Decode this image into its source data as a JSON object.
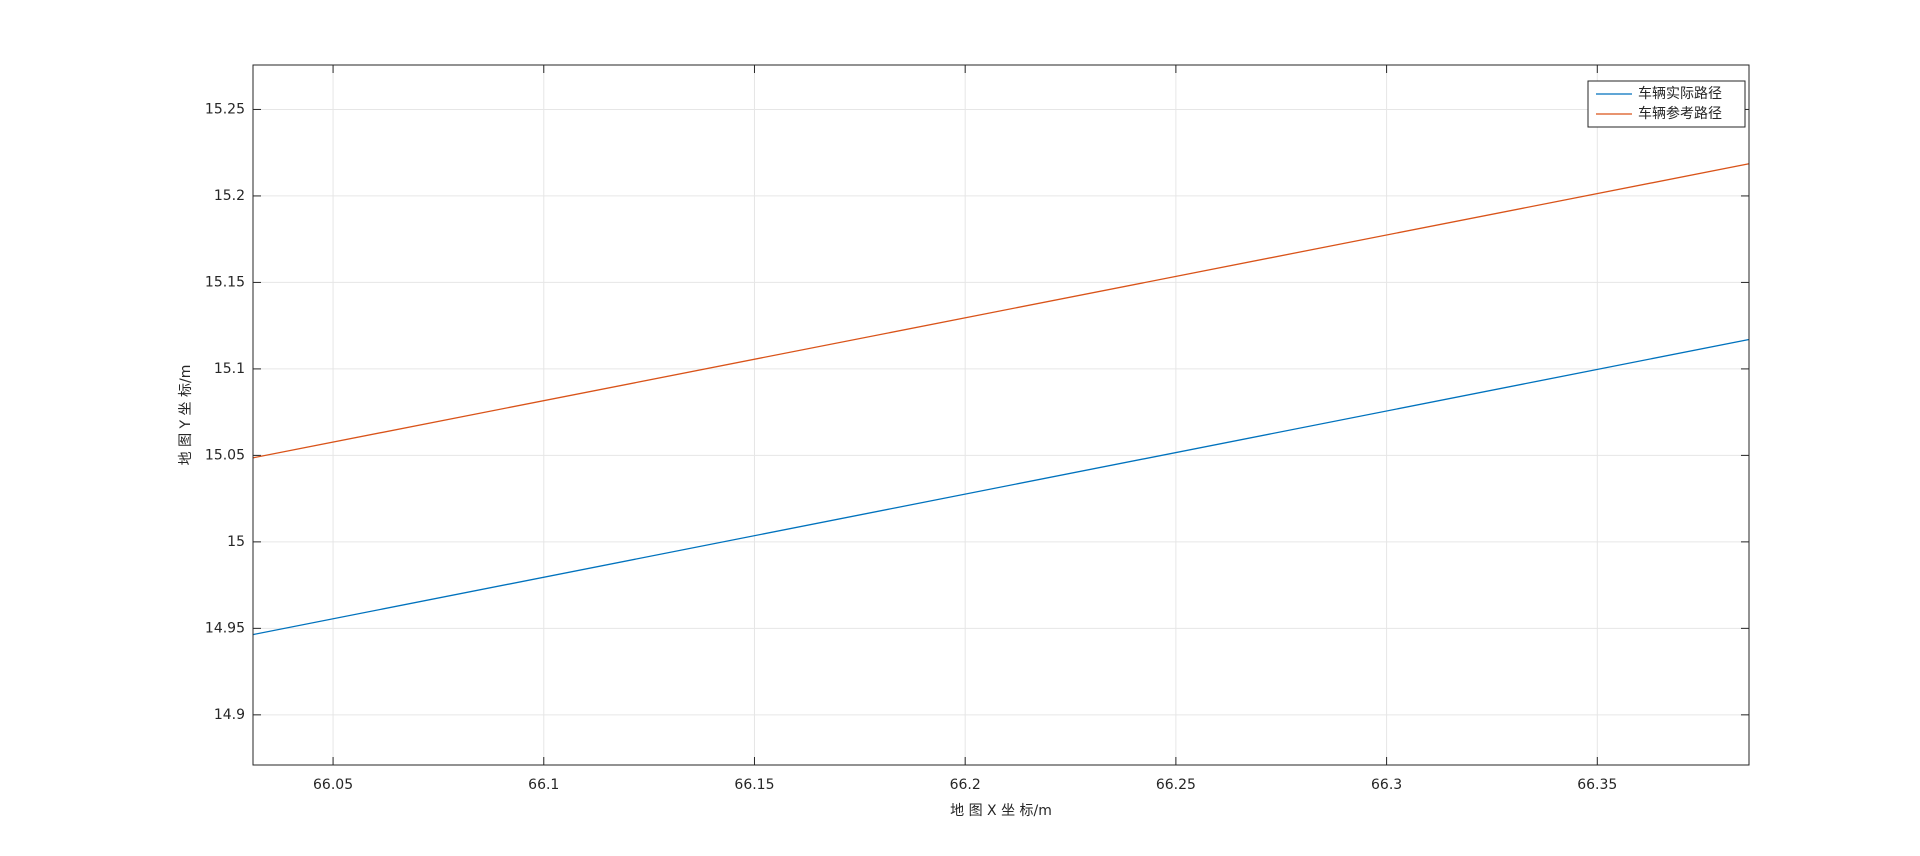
{
  "chart_data": {
    "type": "line",
    "x_label": "地 图 X 坐 标/m",
    "y_label": "地 图 Y 坐 标/m",
    "x": [
      66.031,
      66.386
    ],
    "series": [
      {
        "name": "车辆实际路径",
        "color": "#0072bd",
        "values": [
          14.9464,
          15.117
        ]
      },
      {
        "name": "车辆参考路径",
        "color": "#d95319",
        "values": [
          15.0486,
          15.2186
        ]
      }
    ],
    "xlim": [
      66.031,
      66.386
    ],
    "ylim": [
      14.871,
      15.2757
    ],
    "xticks": [
      66.05,
      66.1,
      66.15,
      66.2,
      66.25,
      66.3,
      66.35
    ],
    "yticks": [
      14.9,
      14.95,
      15,
      15.05,
      15.1,
      15.15,
      15.2,
      15.25
    ],
    "grid": true,
    "legend": "upper-right"
  }
}
